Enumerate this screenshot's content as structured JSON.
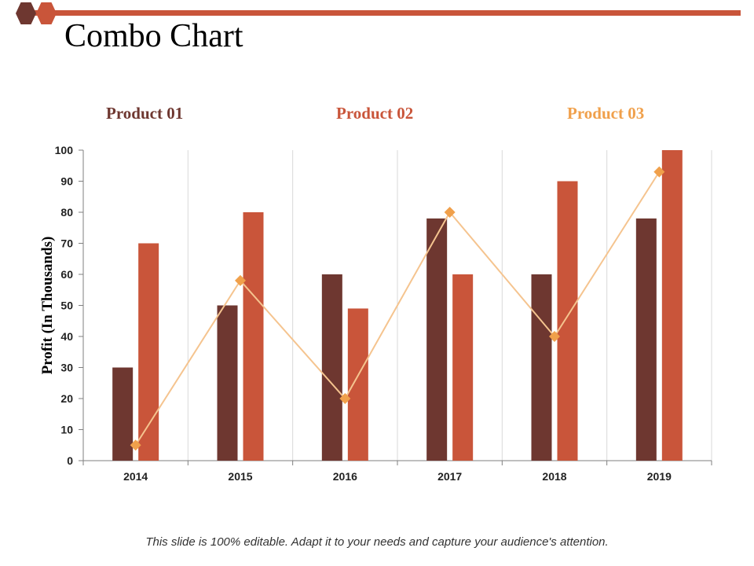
{
  "slide": {
    "title": "Combo Chart",
    "footer": "This slide is 100% editable. Adapt it to your needs and capture your audience's attention."
  },
  "colors": {
    "series1": "#6e3730",
    "series2": "#c9553a",
    "series3": "#f0a04b",
    "line": "#f5c48f",
    "grid": "#d9d9d9",
    "axis": "#7f7f7f"
  },
  "chart_data": {
    "type": "bar",
    "combo": "bar+line",
    "title": "",
    "xlabel": "",
    "ylabel": "Profit  (In Thousands)",
    "ylim": [
      0,
      100
    ],
    "yticks": [
      0,
      10,
      20,
      30,
      40,
      50,
      60,
      70,
      80,
      90,
      100
    ],
    "categories": [
      "2014",
      "2015",
      "2016",
      "2017",
      "2018",
      "2019"
    ],
    "legend_position": "top",
    "series": [
      {
        "name": "Product 01",
        "kind": "bar",
        "color": "#6e3730",
        "values": [
          30,
          50,
          60,
          78,
          60,
          78
        ]
      },
      {
        "name": "Product 02",
        "kind": "bar",
        "color": "#c9553a",
        "values": [
          70,
          80,
          49,
          60,
          90,
          100
        ]
      },
      {
        "name": "Product 03",
        "kind": "line",
        "color": "#f0a04b",
        "values": [
          5,
          58,
          20,
          80,
          40,
          93
        ]
      }
    ]
  }
}
